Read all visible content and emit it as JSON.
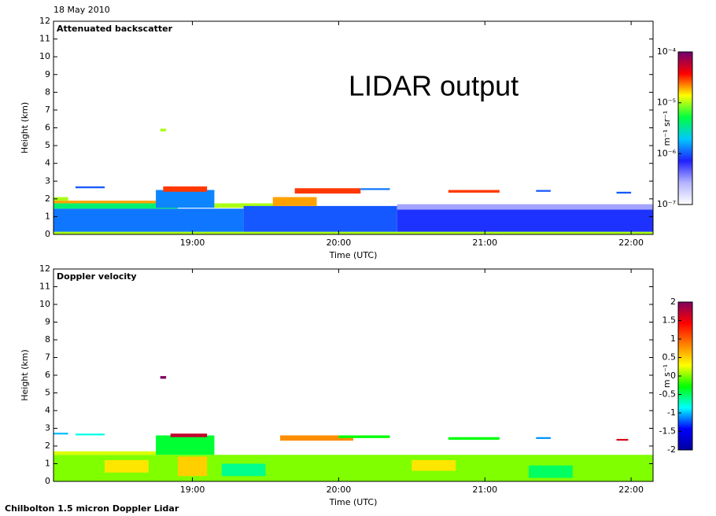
{
  "date": "18 May 2010",
  "annotation": "LIDAR output",
  "footer": "Chilbolton 1.5 micron Doppler Lidar",
  "chart_data": [
    {
      "type": "heatmap",
      "title": "Attenuated backscatter",
      "ylabel": "Height (km)",
      "xlabel": "Time (UTC)",
      "xlim": [
        18.05,
        22.15
      ],
      "xticks": [
        {
          "value": 19,
          "label": "19:00"
        },
        {
          "value": 20,
          "label": "20:00"
        },
        {
          "value": 21,
          "label": "21:00"
        },
        {
          "value": 22,
          "label": "22:00"
        }
      ],
      "ylim": [
        0,
        12
      ],
      "yticks": [
        0,
        1,
        2,
        3,
        4,
        5,
        6,
        7,
        8,
        9,
        10,
        11,
        12
      ],
      "clim": [
        1e-07,
        0.0001
      ],
      "clog": true,
      "clabel": "m⁻¹ sr⁻¹",
      "cticks": [
        {
          "value": 0.0001,
          "label": "10⁻⁴"
        },
        {
          "value": 1e-05,
          "label": "10⁻⁵"
        },
        {
          "value": 1e-06,
          "label": "10⁻⁶"
        },
        {
          "value": 1e-07,
          "label": "10⁻⁷"
        }
      ],
      "colormap": [
        "#ffffff",
        "#b4b4ff",
        "#2020ff",
        "#00c8ff",
        "#00ff40",
        "#ffff00",
        "#ff0000",
        "#700070"
      ],
      "cells": [
        {
          "t0": 18.05,
          "t1": 22.15,
          "z0": 0,
          "z1": 0.15,
          "v": 1e-05
        },
        {
          "t0": 18.05,
          "t1": 19.35,
          "z0": 0.15,
          "z1": 1.45,
          "v": 1.2e-06
        },
        {
          "t0": 18.05,
          "t1": 18.9,
          "z0": 1.45,
          "z1": 1.75,
          "v": 4e-06
        },
        {
          "t0": 18.05,
          "t1": 18.9,
          "z0": 1.75,
          "z1": 1.9,
          "v": 2e-05
        },
        {
          "t0": 18.75,
          "t1": 19.15,
          "z0": 1.5,
          "z1": 2.5,
          "v": 1.3e-06
        },
        {
          "t0": 18.8,
          "t1": 19.1,
          "z0": 2.4,
          "z1": 2.7,
          "v": 3e-05
        },
        {
          "t0": 19.15,
          "t1": 19.6,
          "z0": 1.5,
          "z1": 1.75,
          "v": 1e-05
        },
        {
          "t0": 19.35,
          "t1": 20.4,
          "z0": 0.15,
          "z1": 1.6,
          "v": 1e-06
        },
        {
          "t0": 19.55,
          "t1": 19.85,
          "z0": 1.6,
          "z1": 2.1,
          "v": 2e-05
        },
        {
          "t0": 19.7,
          "t1": 20.15,
          "z0": 2.3,
          "z1": 2.6,
          "v": 3e-05
        },
        {
          "t0": 20.4,
          "t1": 22.15,
          "z0": 0.15,
          "z1": 1.4,
          "v": 8e-07
        },
        {
          "t0": 20.4,
          "t1": 22.15,
          "z0": 1.4,
          "z1": 1.7,
          "v": 3e-07
        },
        {
          "t0": 20.75,
          "t1": 21.1,
          "z0": 2.35,
          "z1": 2.5,
          "v": 3e-05
        },
        {
          "t0": 20.15,
          "t1": 20.35,
          "z0": 2.5,
          "z1": 2.6,
          "v": 1.2e-06
        },
        {
          "t0": 18.78,
          "t1": 18.82,
          "z0": 5.8,
          "z1": 5.95,
          "v": 1e-05
        },
        {
          "t0": 18.2,
          "t1": 18.4,
          "z0": 2.6,
          "z1": 2.7,
          "v": 1e-06
        },
        {
          "t0": 18.05,
          "t1": 18.15,
          "z0": 1.9,
          "z1": 2.1,
          "v": 1e-05
        },
        {
          "t0": 21.35,
          "t1": 21.45,
          "z0": 2.4,
          "z1": 2.5,
          "v": 1e-06
        },
        {
          "t0": 21.9,
          "t1": 22.0,
          "z0": 2.3,
          "z1": 2.4,
          "v": 1e-06
        }
      ]
    },
    {
      "type": "heatmap",
      "title": "Doppler velocity",
      "ylabel": "Height (km)",
      "xlabel": "Time (UTC)",
      "xlim": [
        18.05,
        22.15
      ],
      "xticks": [
        {
          "value": 19,
          "label": "19:00"
        },
        {
          "value": 20,
          "label": "20:00"
        },
        {
          "value": 21,
          "label": "21:00"
        },
        {
          "value": 22,
          "label": "22:00"
        }
      ],
      "ylim": [
        0,
        12
      ],
      "yticks": [
        0,
        1,
        2,
        3,
        4,
        5,
        6,
        7,
        8,
        9,
        10,
        11,
        12
      ],
      "clim": [
        -2,
        2
      ],
      "clog": false,
      "clabel": "m s⁻¹",
      "cticks": [
        2,
        1.5,
        1,
        0.5,
        0,
        -0.5,
        -1,
        -1.5,
        -2
      ],
      "colormap": [
        "#0000a0",
        "#0000ff",
        "#00ffff",
        "#00ff00",
        "#ffff00",
        "#ff8000",
        "#ff0000",
        "#800060"
      ],
      "cells": [
        {
          "t0": 18.05,
          "t1": 22.15,
          "z0": 0,
          "z1": 1.5,
          "v": 0
        },
        {
          "t0": 18.4,
          "t1": 18.7,
          "z0": 0.5,
          "z1": 1.2,
          "v": 0.4
        },
        {
          "t0": 18.9,
          "t1": 19.1,
          "z0": 0.3,
          "z1": 1.4,
          "v": 0.5
        },
        {
          "t0": 19.2,
          "t1": 19.5,
          "z0": 0.3,
          "z1": 1.0,
          "v": -0.6
        },
        {
          "t0": 20.5,
          "t1": 20.8,
          "z0": 0.6,
          "z1": 1.2,
          "v": 0.4
        },
        {
          "t0": 21.3,
          "t1": 21.6,
          "z0": 0.2,
          "z1": 0.9,
          "v": -0.5
        },
        {
          "t0": 18.05,
          "t1": 18.9,
          "z0": 1.5,
          "z1": 1.7,
          "v": 0.2
        },
        {
          "t0": 18.75,
          "t1": 19.15,
          "z0": 1.5,
          "z1": 2.6,
          "v": -0.4
        },
        {
          "t0": 18.85,
          "t1": 19.1,
          "z0": 2.5,
          "z1": 2.7,
          "v": 1.7
        },
        {
          "t0": 19.6,
          "t1": 20.1,
          "z0": 2.3,
          "z1": 2.6,
          "v": 0.8
        },
        {
          "t0": 20.0,
          "t1": 20.35,
          "z0": 2.45,
          "z1": 2.6,
          "v": -0.3
        },
        {
          "t0": 20.75,
          "t1": 21.1,
          "z0": 2.35,
          "z1": 2.5,
          "v": -0.3
        },
        {
          "t0": 18.78,
          "t1": 18.82,
          "z0": 5.8,
          "z1": 5.95,
          "v": 2
        },
        {
          "t0": 18.2,
          "t1": 18.4,
          "z0": 2.6,
          "z1": 2.7,
          "v": -0.8
        },
        {
          "t0": 21.9,
          "t1": 21.98,
          "z0": 2.3,
          "z1": 2.4,
          "v": 1.6
        },
        {
          "t0": 21.35,
          "t1": 21.45,
          "z0": 2.4,
          "z1": 2.5,
          "v": -1.1
        },
        {
          "t0": 18.05,
          "t1": 18.15,
          "z0": 2.65,
          "z1": 2.75,
          "v": -1
        }
      ]
    }
  ]
}
